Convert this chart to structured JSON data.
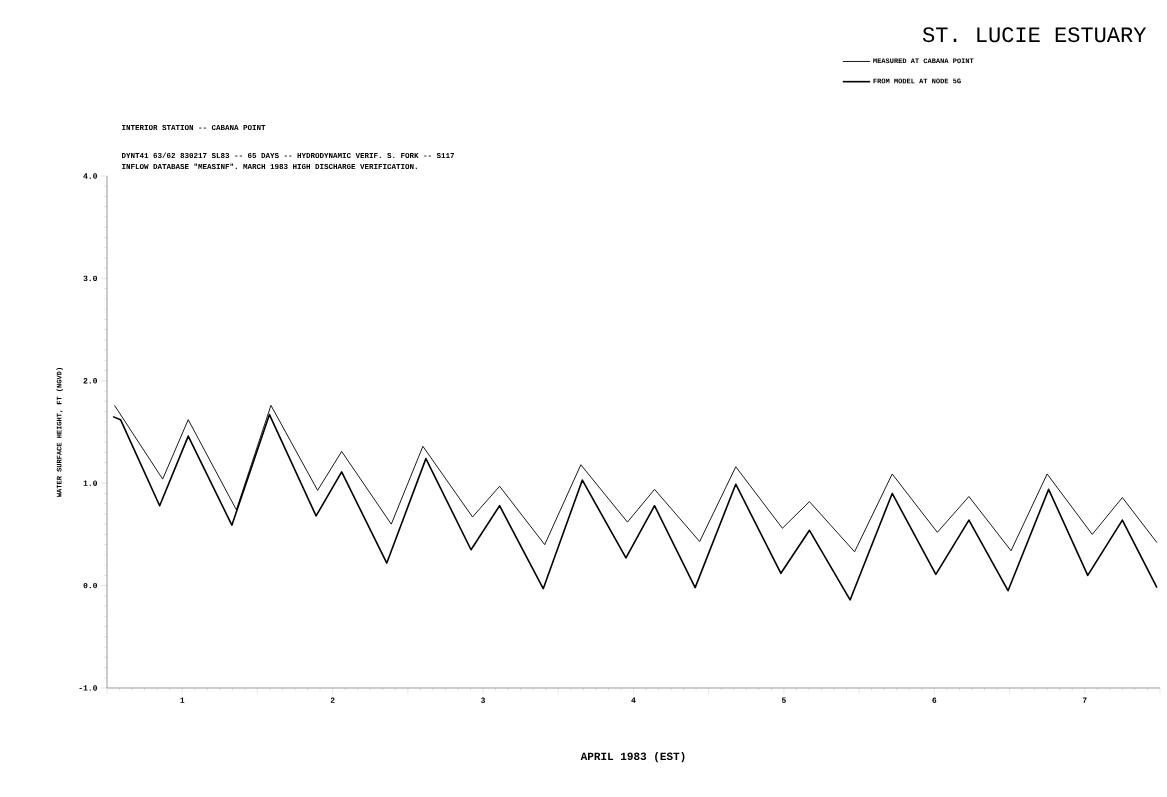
{
  "chart_data": {
    "type": "line",
    "title": "ST. LUCIE ESTUARY",
    "subtitle": "INTERIOR STATION -- CABANA POINT",
    "annotations": [
      "DYNT41 63/62  830217  SL83 -- 65 DAYS -- HYDRODYNAMIC VERIF. S. FORK -- S117",
      "INFLOW DATABASE \"MEASINF\". MARCH 1983 HIGH DISCHARGE VERIFICATION."
    ],
    "xlabel": "APRIL   1983 (EST)",
    "ylabel": "WATER SURFACE HEIGHT, FT (NGVD)",
    "xlim": [
      1,
      8
    ],
    "ylim": [
      -1,
      4
    ],
    "xticks": [
      {
        "value": 1,
        "label": null
      },
      {
        "value": 1.5,
        "label": "1"
      },
      {
        "value": 2,
        "label": null
      },
      {
        "value": 2.5,
        "label": "2"
      },
      {
        "value": 3,
        "label": null
      },
      {
        "value": 3.5,
        "label": "3"
      },
      {
        "value": 4,
        "label": null
      },
      {
        "value": 4.5,
        "label": "4"
      },
      {
        "value": 5,
        "label": null
      },
      {
        "value": 5.5,
        "label": "5"
      },
      {
        "value": 6,
        "label": null
      },
      {
        "value": 6.5,
        "label": "6"
      },
      {
        "value": 7,
        "label": null
      },
      {
        "value": 7.5,
        "label": "7"
      },
      {
        "value": 8,
        "label": null
      }
    ],
    "yticks": [
      {
        "value": -1,
        "label": "-1.0"
      },
      {
        "value": 0,
        "label": "0.0"
      },
      {
        "value": 1,
        "label": "1.0"
      },
      {
        "value": 2,
        "label": "2.0"
      },
      {
        "value": 3,
        "label": "3.0"
      },
      {
        "value": 4,
        "label": "4.0"
      }
    ],
    "grid": false,
    "legend": "top right",
    "series": [
      {
        "name": "MEASURED AT CABANA POINT",
        "color": "#000000",
        "x": [
          1.05,
          1.37,
          1.54,
          1.86,
          2.09,
          2.4,
          2.56,
          2.89,
          3.1,
          3.43,
          3.61,
          3.91,
          4.15,
          4.46,
          4.64,
          4.94,
          5.18,
          5.49,
          5.67,
          5.97,
          6.22,
          6.52,
          6.73,
          7.01,
          7.25,
          7.55,
          7.75,
          7.98
        ],
        "values": [
          1.76,
          1.04,
          1.62,
          0.74,
          1.76,
          0.93,
          1.31,
          0.6,
          1.36,
          0.67,
          0.97,
          0.4,
          1.18,
          0.62,
          0.94,
          0.43,
          1.16,
          0.56,
          0.82,
          0.33,
          1.09,
          0.52,
          0.87,
          0.34,
          1.09,
          0.5,
          0.86,
          0.42
        ]
      },
      {
        "name": "FROM MODEL AT NODE 5G",
        "color": "#000000",
        "x": [
          1.04,
          1.09,
          1.35,
          1.54,
          1.83,
          2.08,
          2.39,
          2.56,
          2.86,
          3.12,
          3.42,
          3.61,
          3.9,
          4.16,
          4.45,
          4.64,
          4.91,
          5.18,
          5.48,
          5.67,
          5.94,
          6.22,
          6.51,
          6.73,
          6.99,
          7.26,
          7.52,
          7.75,
          7.98
        ],
        "values": [
          1.65,
          1.62,
          0.78,
          1.46,
          0.59,
          1.67,
          0.68,
          1.11,
          0.22,
          1.24,
          0.35,
          0.78,
          -0.03,
          1.03,
          0.27,
          0.78,
          -0.02,
          0.99,
          0.12,
          0.54,
          -0.14,
          0.9,
          0.11,
          0.64,
          -0.05,
          0.94,
          0.1,
          0.64,
          -0.02
        ]
      }
    ]
  }
}
